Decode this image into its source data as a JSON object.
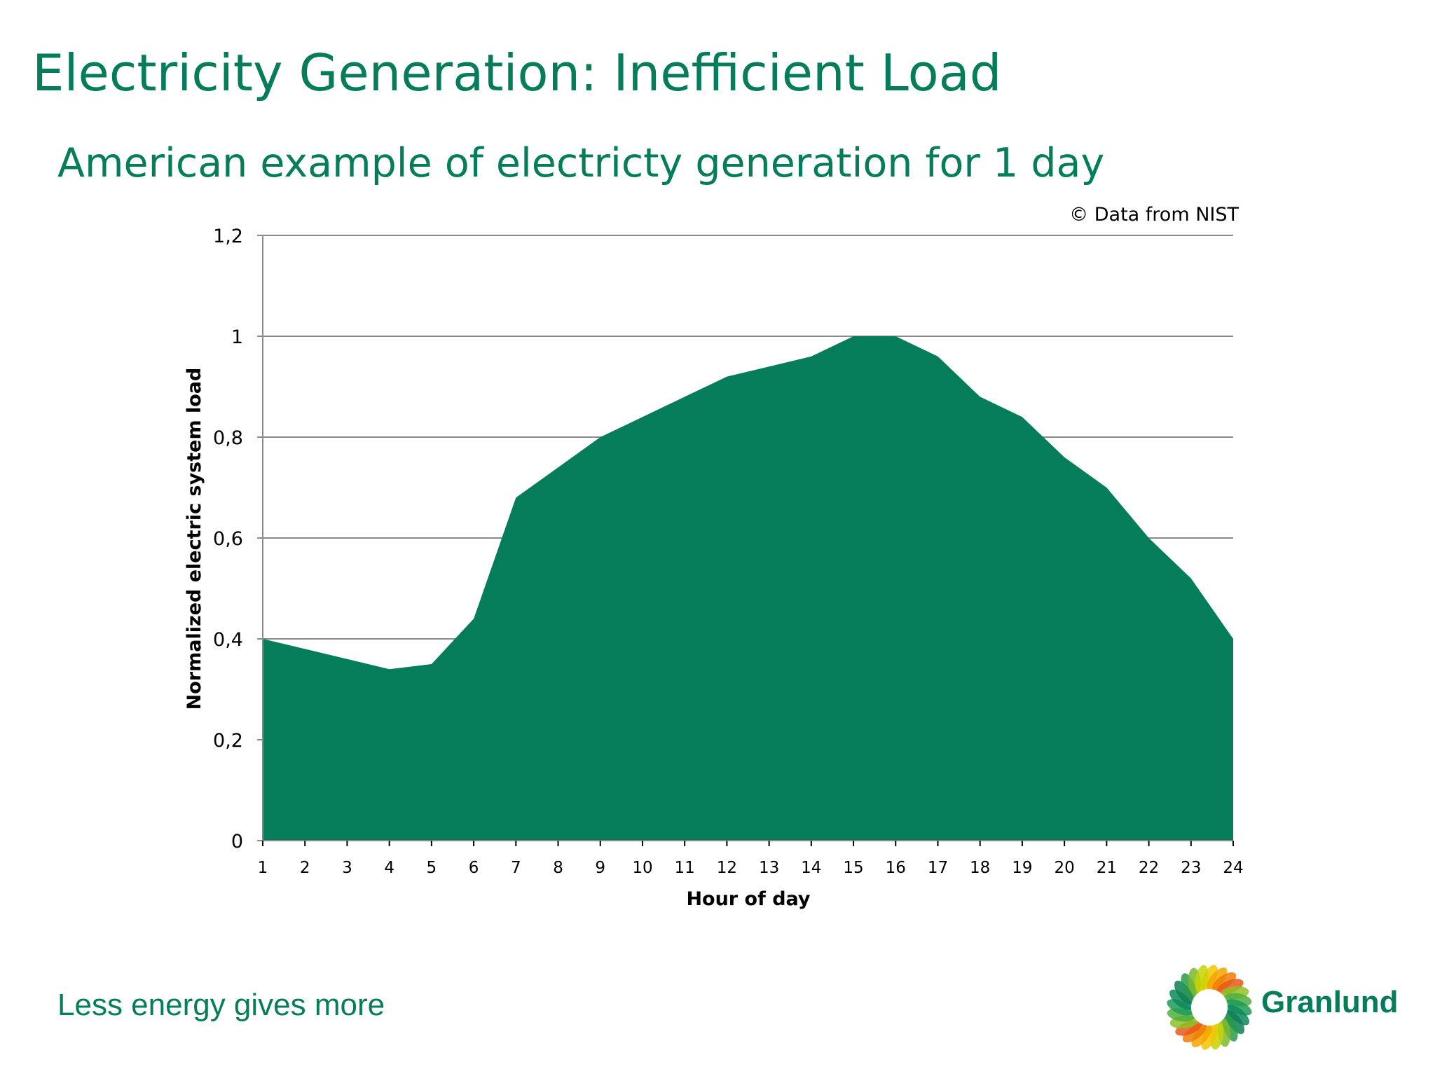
{
  "slide": {
    "title": "Electricity Generation: Inefficient Load",
    "subtitle": "American example of electricty generation for 1 day",
    "tagline": "Less energy gives more",
    "brand": "Granlund"
  },
  "chart_data": {
    "type": "area",
    "x": [
      1,
      2,
      3,
      4,
      5,
      6,
      7,
      8,
      9,
      10,
      11,
      12,
      13,
      14,
      15,
      16,
      17,
      18,
      19,
      20,
      21,
      22,
      23,
      24
    ],
    "values": [
      0.4,
      0.38,
      0.36,
      0.34,
      0.35,
      0.44,
      0.68,
      0.74,
      0.8,
      0.84,
      0.88,
      0.92,
      0.94,
      0.96,
      1.0,
      1.0,
      0.96,
      0.88,
      0.84,
      0.76,
      0.7,
      0.6,
      0.52,
      0.4
    ],
    "xlabel": "Hour of day",
    "ylabel": "Normalized electric system load",
    "ylim": [
      0,
      1.2
    ],
    "yticks": [
      0,
      0.2,
      0.4,
      0.6,
      0.8,
      1,
      1.2
    ],
    "ytick_labels": [
      "0",
      "0,2",
      "0,4",
      "0,6",
      "0,8",
      "1",
      "1,2"
    ],
    "grid": true,
    "annotation": "© Data from NIST",
    "fill_color": "#057d5b",
    "grid_color": "#8a8a8a"
  }
}
